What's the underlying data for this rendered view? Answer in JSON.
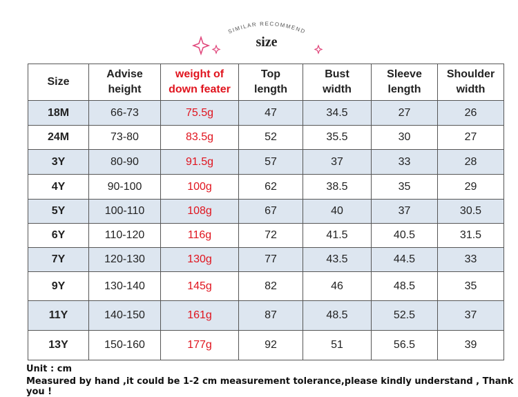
{
  "header": {
    "subtitle": "SIMILAR RECOMMEND",
    "title": "size"
  },
  "table": {
    "columns": [
      [
        "Size"
      ],
      [
        "Advise",
        "height"
      ],
      [
        "weight of",
        "down feater"
      ],
      [
        "Top",
        "length"
      ],
      [
        "Bust",
        "width"
      ],
      [
        "Sleeve",
        "length"
      ],
      [
        "Shoulder",
        "width"
      ]
    ],
    "rows": [
      [
        "18M",
        "66-73",
        "75.5g",
        "47",
        "34.5",
        "27",
        "26"
      ],
      [
        "24M",
        "73-80",
        "83.5g",
        "52",
        "35.5",
        "30",
        "27"
      ],
      [
        "3Y",
        "80-90",
        "91.5g",
        "57",
        "37",
        "33",
        "28"
      ],
      [
        "4Y",
        "90-100",
        "100g",
        "62",
        "38.5",
        "35",
        "29"
      ],
      [
        "5Y",
        "100-110",
        "108g",
        "67",
        "40",
        "37",
        "30.5"
      ],
      [
        "6Y",
        "110-120",
        "116g",
        "72",
        "41.5",
        "40.5",
        "31.5"
      ],
      [
        "7Y",
        "120-130",
        "130g",
        "77",
        "43.5",
        "44.5",
        "33"
      ],
      [
        "9Y",
        "130-140",
        "145g",
        "82",
        "46",
        "48.5",
        "35"
      ],
      [
        "11Y",
        "140-150",
        "161g",
        "87",
        "48.5",
        "52.5",
        "37"
      ],
      [
        "13Y",
        "150-160",
        "177g",
        "92",
        "51",
        "56.5",
        "39"
      ]
    ]
  },
  "footer": {
    "unit": "Unit : cm",
    "note": "Measured by hand ,it could be 1-2 cm measurement tolerance,please kindly understand , Thank you !"
  }
}
